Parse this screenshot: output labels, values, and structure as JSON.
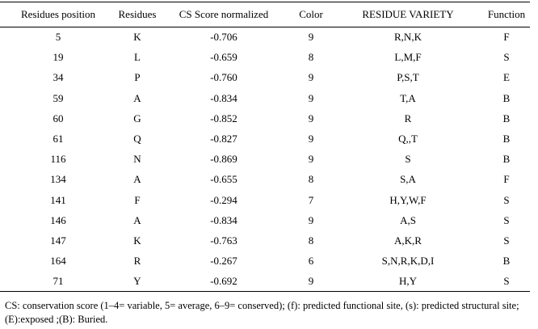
{
  "table": {
    "header": [
      "Residues position",
      "Residues",
      "CS Score normalized",
      "Color",
      "RESIDUE VARIETY",
      "Function"
    ],
    "rows": [
      [
        "5",
        "K",
        "-0.706",
        "9",
        "R,N,K",
        "F"
      ],
      [
        "19",
        "L",
        "-0.659",
        "8",
        "L,M,F",
        "S"
      ],
      [
        "34",
        "P",
        "-0.760",
        "9",
        "P,S,T",
        "E"
      ],
      [
        "59",
        "A",
        "-0.834",
        "9",
        "T,A",
        "B"
      ],
      [
        "60",
        "G",
        "-0.852",
        "9",
        "R",
        "B"
      ],
      [
        "61",
        "Q",
        "-0.827",
        "9",
        "Q,,T",
        "B"
      ],
      [
        "116",
        "N",
        "-0.869",
        "9",
        "S",
        "B"
      ],
      [
        "134",
        "A",
        "-0.655",
        "8",
        "S,A",
        "F"
      ],
      [
        "141",
        "F",
        "-0.294",
        "7",
        "H,Y,W,F",
        "S"
      ],
      [
        "146",
        "A",
        "-0.834",
        "9",
        "A,S",
        "S"
      ],
      [
        "147",
        "K",
        "-0.763",
        "8",
        "A,K,R",
        "S"
      ],
      [
        "164",
        "R",
        "-0.267",
        "6",
        "S,N,R,K,D,I",
        "B"
      ],
      [
        "71",
        "Y",
        "-0.692",
        "9",
        "H,Y",
        "S"
      ]
    ],
    "footnote": "CS: conservation score (1–4= variable, 5= average, 6–9= conserved); (f): predicted functional site, (s): predicted structural site; (E):exposed ;(B): Buried."
  }
}
